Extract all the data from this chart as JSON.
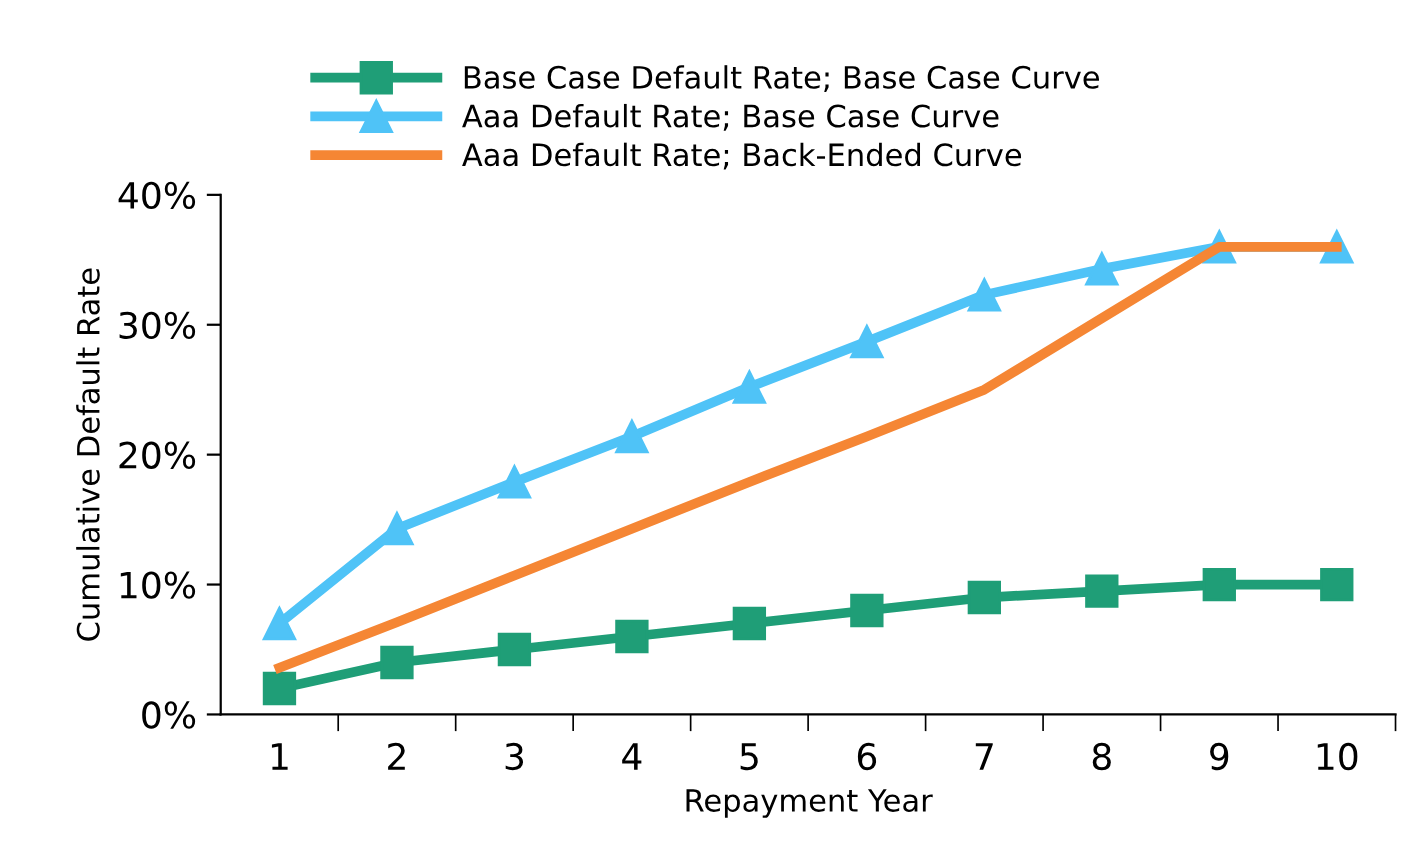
{
  "chart_data": {
    "type": "line",
    "xlabel": "Repayment Year",
    "ylabel": "Cumulative Default Rate",
    "categories": [
      "1",
      "2",
      "3",
      "4",
      "5",
      "6",
      "7",
      "8",
      "9",
      "10"
    ],
    "series": [
      {
        "name": "Base Case Default Rate; Base Case Curve",
        "color": "#1f9e77",
        "marker": "square",
        "values": [
          2,
          4,
          5,
          6,
          7,
          8,
          9,
          9.5,
          10,
          10
        ]
      },
      {
        "name": "Aaa Default Rate; Base Case Curve",
        "color": "#4fc3f7",
        "marker": "triangle",
        "values": [
          7,
          14.3,
          17.9,
          21.4,
          25.2,
          28.7,
          32.3,
          34.3,
          36,
          36
        ]
      },
      {
        "name": "Aaa Default Rate; Back-Ended Curve",
        "color": "#f58634",
        "marker": "none",
        "values": [
          3.6,
          7.1,
          10.7,
          14.3,
          17.9,
          21.4,
          25,
          30.5,
          36,
          36
        ]
      }
    ],
    "ylim": [
      0,
      40
    ],
    "yticks": [
      {
        "value": 0,
        "label": "0%"
      },
      {
        "value": 10,
        "label": "10%"
      },
      {
        "value": 20,
        "label": "20%"
      },
      {
        "value": 30,
        "label": "30%"
      },
      {
        "value": 40,
        "label": "40%"
      }
    ],
    "grid": false,
    "legend": "top"
  }
}
